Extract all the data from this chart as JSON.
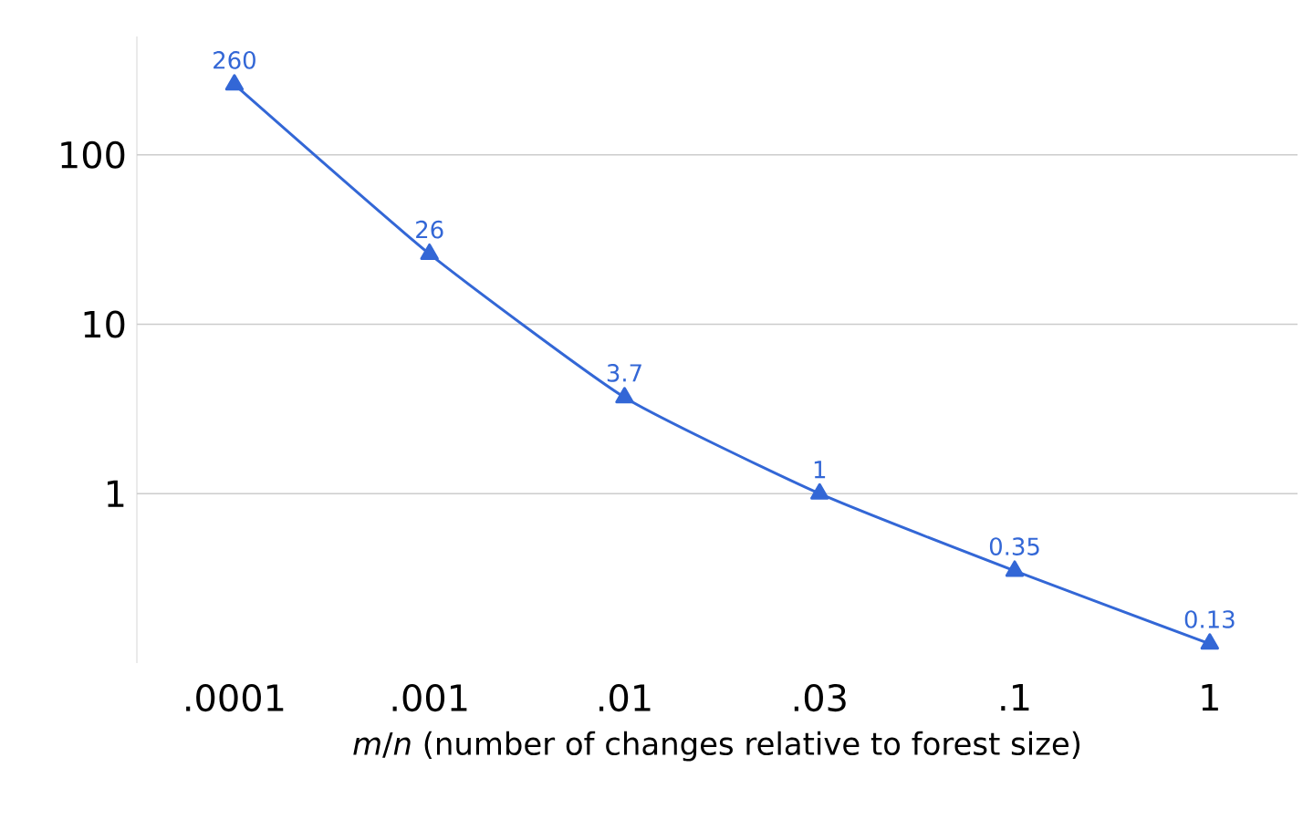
{
  "chart_data": {
    "type": "line",
    "xlabel": "*m*/*n* (number of changes relative to forest size)",
    "categories": [
      ".0001",
      ".001",
      ".01",
      ".03",
      ".1",
      "1"
    ],
    "series": [
      {
        "color": "#3367d6",
        "values": [
          260,
          26,
          3.7,
          1,
          0.35,
          0.13
        ]
      }
    ],
    "ylim": [
      0.1,
      500
    ],
    "yticks": [
      1,
      10,
      100
    ],
    "log": true,
    "grid": "y",
    "marker": "triangle",
    "line_style": "solid",
    "data_labels": true
  }
}
